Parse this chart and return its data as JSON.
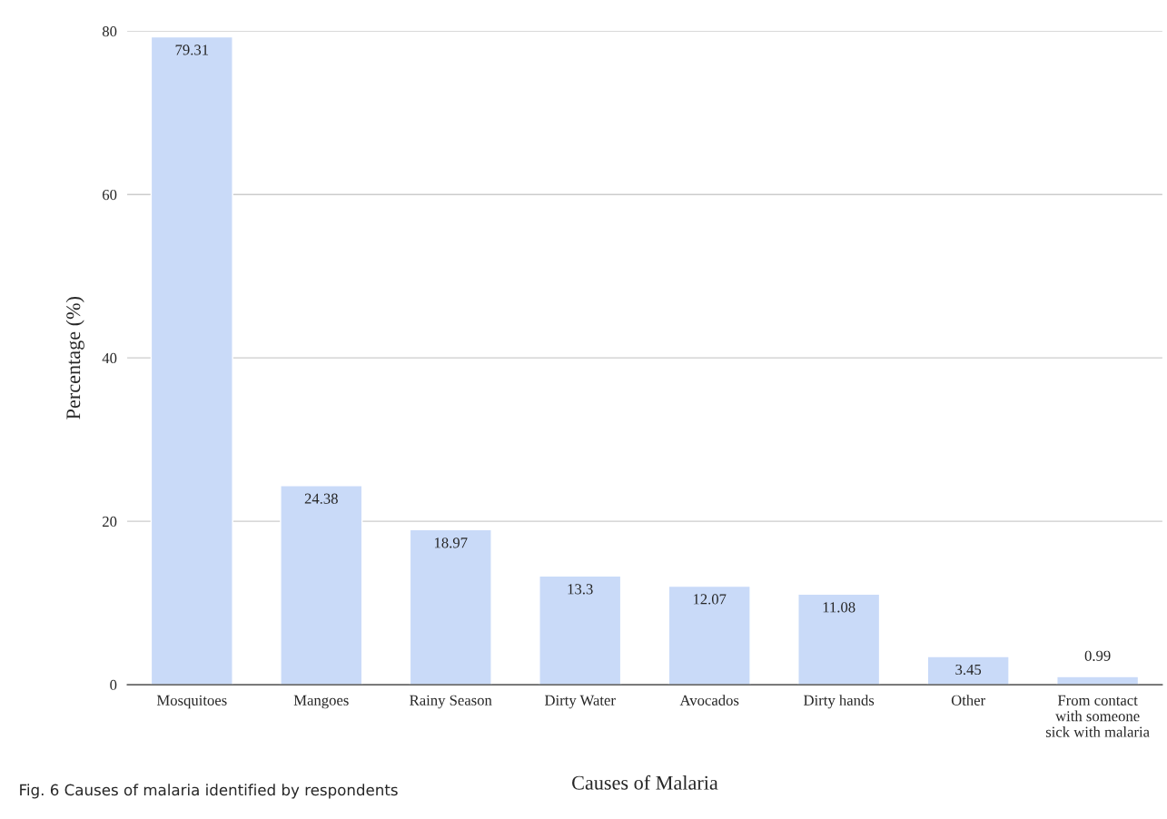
{
  "chart_data": {
    "type": "bar",
    "categories": [
      "Mosquitoes",
      "Mangoes",
      "Rainy Season",
      "Dirty Water",
      "Avocados",
      "Dirty hands",
      "Other",
      "From contact\nwith someone\nsick with malaria"
    ],
    "values": [
      79.31,
      24.38,
      18.97,
      13.3,
      12.07,
      11.08,
      3.45,
      0.99
    ],
    "color": "#c9daf8",
    "data_labels": true,
    "xlabel": "Causes of Malaria",
    "ylabel": "Percentage (%)",
    "ylim": [
      0,
      80
    ],
    "yticks": [
      0,
      20,
      40,
      60,
      80
    ],
    "grid": "y",
    "annotations": [
      "Fig. 6 Causes of malaria identified by respondents"
    ]
  }
}
